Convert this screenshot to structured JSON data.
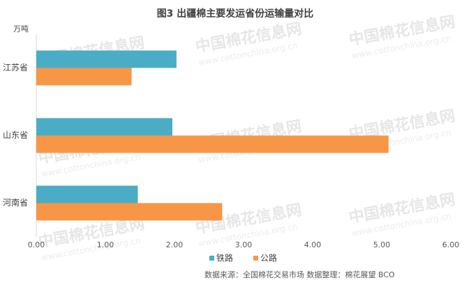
{
  "chart_data": {
    "type": "hbar",
    "title": "图3  出疆棉主要发运省份运输量对比",
    "y_label": "万吨",
    "categories": [
      "江苏省",
      "山东省",
      "河南省"
    ],
    "series": [
      {
        "name": "铁路",
        "color": "#4bacc6",
        "values": [
          2.03,
          1.97,
          1.47
        ]
      },
      {
        "name": "公路",
        "color": "#f79646",
        "values": [
          1.38,
          5.1,
          2.69
        ]
      }
    ],
    "xlim": [
      0,
      6
    ],
    "xticks": [
      {
        "value": 0,
        "label": "0.00"
      },
      {
        "value": 1,
        "label": "1.00"
      },
      {
        "value": 2,
        "label": "2.00"
      },
      {
        "value": 3,
        "label": "3.00"
      },
      {
        "value": 4,
        "label": "4.00"
      },
      {
        "value": 5,
        "label": "5.00"
      },
      {
        "value": 6,
        "label": "6.00"
      }
    ],
    "source": "数据来源：全国棉花交易市场    数据整理：棉花展望 BCO",
    "watermark": [
      "中国棉花信息网",
      "www.cottonchina.org.cn"
    ]
  }
}
